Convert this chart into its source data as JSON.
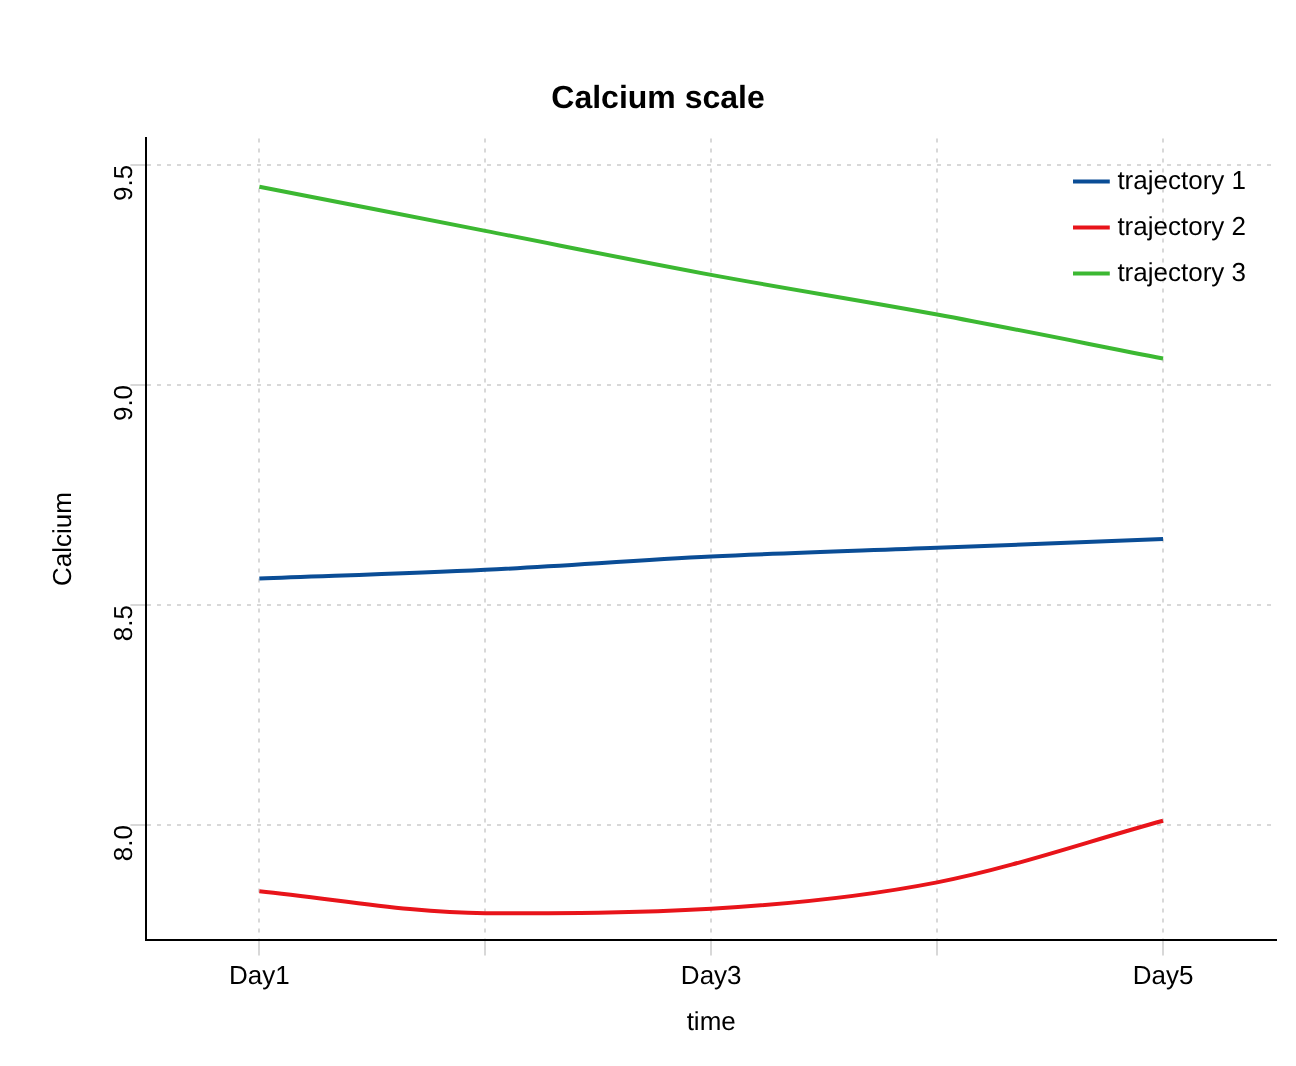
{
  "chart_data": {
    "type": "line",
    "title": "Calcium scale",
    "xlabel": "time",
    "ylabel": "Calcium",
    "categories": [
      "Day1",
      null,
      "Day3",
      null,
      "Day5"
    ],
    "series": [
      {
        "name": "trajectory 1",
        "color": "#0a4d96",
        "values": [
          8.56,
          8.58,
          8.61,
          8.63,
          8.65
        ]
      },
      {
        "name": "trajectory 2",
        "color": "#e8141a",
        "values": [
          7.85,
          7.8,
          7.81,
          7.87,
          8.01
        ]
      },
      {
        "name": "trajectory 3",
        "color": "#3cb832",
        "values": [
          9.45,
          9.35,
          9.25,
          9.16,
          9.06
        ]
      }
    ],
    "ylim": [
      7.74,
      9.56
    ],
    "yticks": [
      {
        "value": 8,
        "label": "8.0"
      },
      {
        "value": 8.5,
        "label": "8.5"
      },
      {
        "value": 9,
        "label": "9.0"
      },
      {
        "value": 9.5,
        "label": "9.5"
      }
    ],
    "grid": true,
    "legend": "top right",
    "marker": "none",
    "line_style": "solid"
  }
}
